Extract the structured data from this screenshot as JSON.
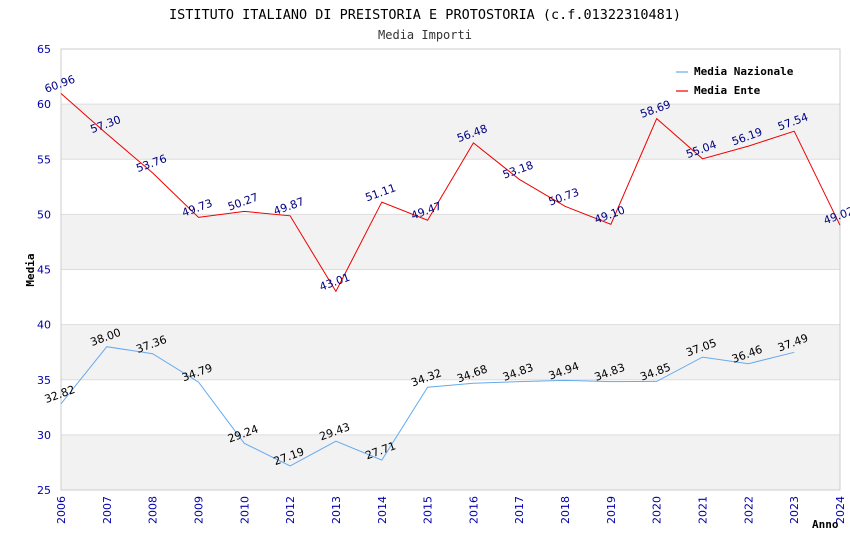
{
  "chart_data": {
    "type": "line",
    "title": "ISTITUTO ITALIANO DI PREISTORIA E PROTOSTORIA (c.f.01322310481)",
    "subtitle": "Media Importi",
    "xlabel": "Anno",
    "ylabel": "Media",
    "ylim": [
      25,
      65
    ],
    "yticks": [
      "25",
      "30",
      "35",
      "40",
      "45",
      "50",
      "55",
      "60",
      "65"
    ],
    "categories": [
      "2006",
      "2007",
      "2008",
      "2009",
      "2010",
      "2012",
      "2013",
      "2014",
      "2015",
      "2016",
      "2017",
      "2018",
      "2019",
      "2020",
      "2021",
      "2022",
      "2023",
      "2024"
    ],
    "grid": true,
    "legend_position": "top-right",
    "series": [
      {
        "name": "Media Nazionale",
        "color": "#66aaee",
        "label_color": "#000000",
        "values": [
          32.82,
          38.0,
          37.36,
          34.79,
          29.24,
          27.19,
          29.43,
          27.71,
          34.32,
          34.68,
          34.83,
          34.94,
          34.83,
          34.85,
          37.05,
          36.46,
          37.49,
          null
        ],
        "labels": [
          "32.82",
          "38.00",
          "37.36",
          "34.79",
          "29.24",
          "27.19",
          "29.43",
          "27.71",
          "34.32",
          "34.68",
          "34.83",
          "34.94",
          "34.83",
          "34.85",
          "37.05",
          "36.46",
          "37.49",
          ""
        ]
      },
      {
        "name": "Media Ente",
        "color": "#ee0000",
        "label_color": "#000080",
        "values": [
          60.96,
          57.3,
          53.76,
          49.73,
          50.27,
          49.87,
          43.01,
          51.11,
          49.47,
          56.48,
          53.18,
          50.73,
          49.1,
          58.69,
          55.04,
          56.19,
          57.54,
          49.02
        ],
        "labels": [
          "60.96",
          "57.30",
          "53.76",
          "49.73",
          "50.27",
          "49.87",
          "43.01",
          "51.11",
          "49.47",
          "56.48",
          "53.18",
          "50.73",
          "49.10",
          "58.69",
          "55.04",
          "56.19",
          "57.54",
          "49.02"
        ]
      }
    ]
  }
}
